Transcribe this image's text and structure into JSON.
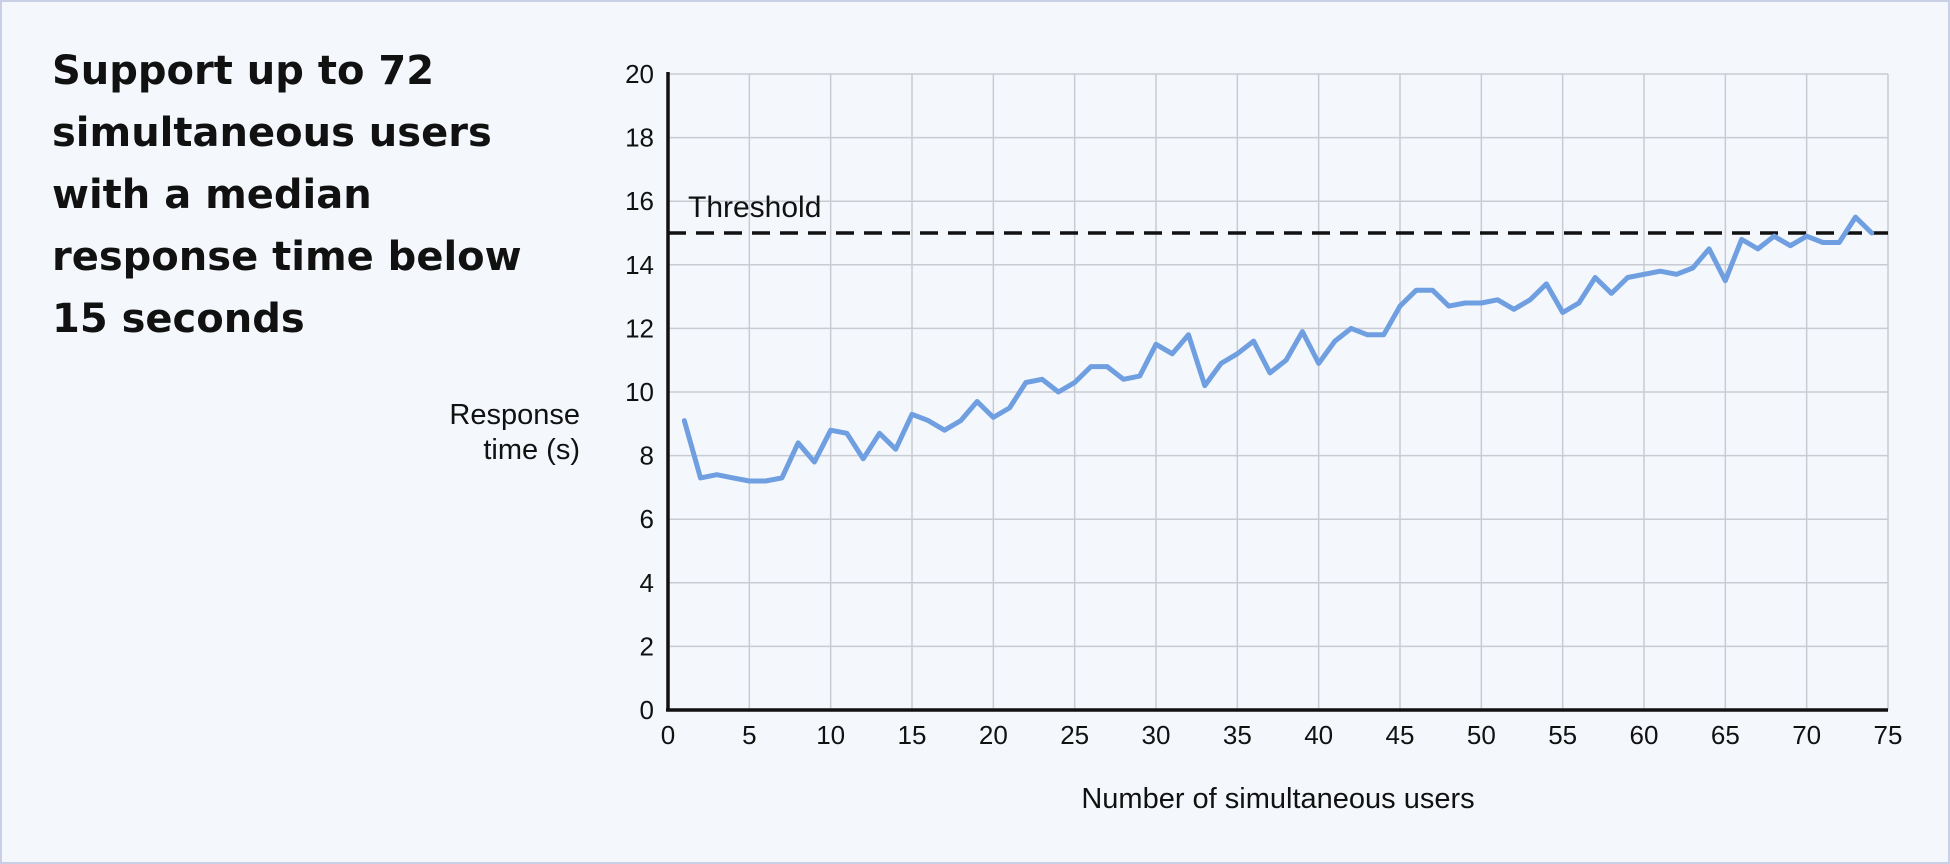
{
  "headline": "Support up to 72 simultaneous users with a median response time below 15 seconds",
  "chart_data": {
    "type": "line",
    "xlabel": "Number of simultaneous users",
    "ylabel_lines": [
      "Response",
      "time (s)"
    ],
    "xlim": [
      0,
      75
    ],
    "ylim": [
      0,
      20
    ],
    "x_ticks": [
      0,
      5,
      10,
      15,
      20,
      25,
      30,
      35,
      40,
      45,
      50,
      55,
      60,
      65,
      70,
      75
    ],
    "y_ticks": [
      0,
      2,
      4,
      6,
      8,
      10,
      12,
      14,
      16,
      18,
      20
    ],
    "grid": true,
    "threshold": {
      "label": "Threshold",
      "value": 15
    },
    "series": [
      {
        "color": "#6f9fe0",
        "x": [
          1,
          2,
          3,
          4,
          5,
          6,
          7,
          8,
          9,
          10,
          11,
          12,
          13,
          14,
          15,
          16,
          17,
          18,
          19,
          20,
          21,
          22,
          23,
          24,
          25,
          26,
          27,
          28,
          29,
          30,
          31,
          32,
          33,
          34,
          35,
          36,
          37,
          38,
          39,
          40,
          41,
          42,
          43,
          44,
          45,
          46,
          47,
          48,
          49,
          50,
          51,
          52,
          53,
          54,
          55,
          56,
          57,
          58,
          59,
          60,
          61,
          62,
          63,
          64,
          65,
          66,
          67,
          68,
          69,
          70,
          71,
          72,
          73,
          74
        ],
        "y": [
          9.1,
          7.3,
          7.4,
          7.3,
          7.2,
          7.2,
          7.3,
          8.4,
          7.8,
          8.8,
          8.7,
          7.9,
          8.7,
          8.2,
          9.3,
          9.1,
          8.8,
          9.1,
          9.7,
          9.2,
          9.5,
          10.3,
          10.4,
          10.0,
          10.3,
          10.8,
          10.8,
          10.4,
          10.5,
          11.5,
          11.2,
          11.8,
          10.2,
          10.9,
          11.2,
          11.6,
          10.6,
          11.0,
          11.9,
          10.9,
          11.6,
          12.0,
          11.8,
          11.8,
          12.7,
          13.2,
          13.2,
          12.7,
          12.8,
          12.8,
          12.9,
          12.6,
          12.9,
          13.4,
          12.5,
          12.8,
          13.6,
          13.1,
          13.6,
          13.7,
          13.8,
          13.7,
          13.9,
          14.5,
          13.5,
          14.8,
          14.5,
          14.9,
          14.6,
          14.9,
          14.7,
          14.7,
          15.5,
          15.0
        ]
      }
    ]
  }
}
